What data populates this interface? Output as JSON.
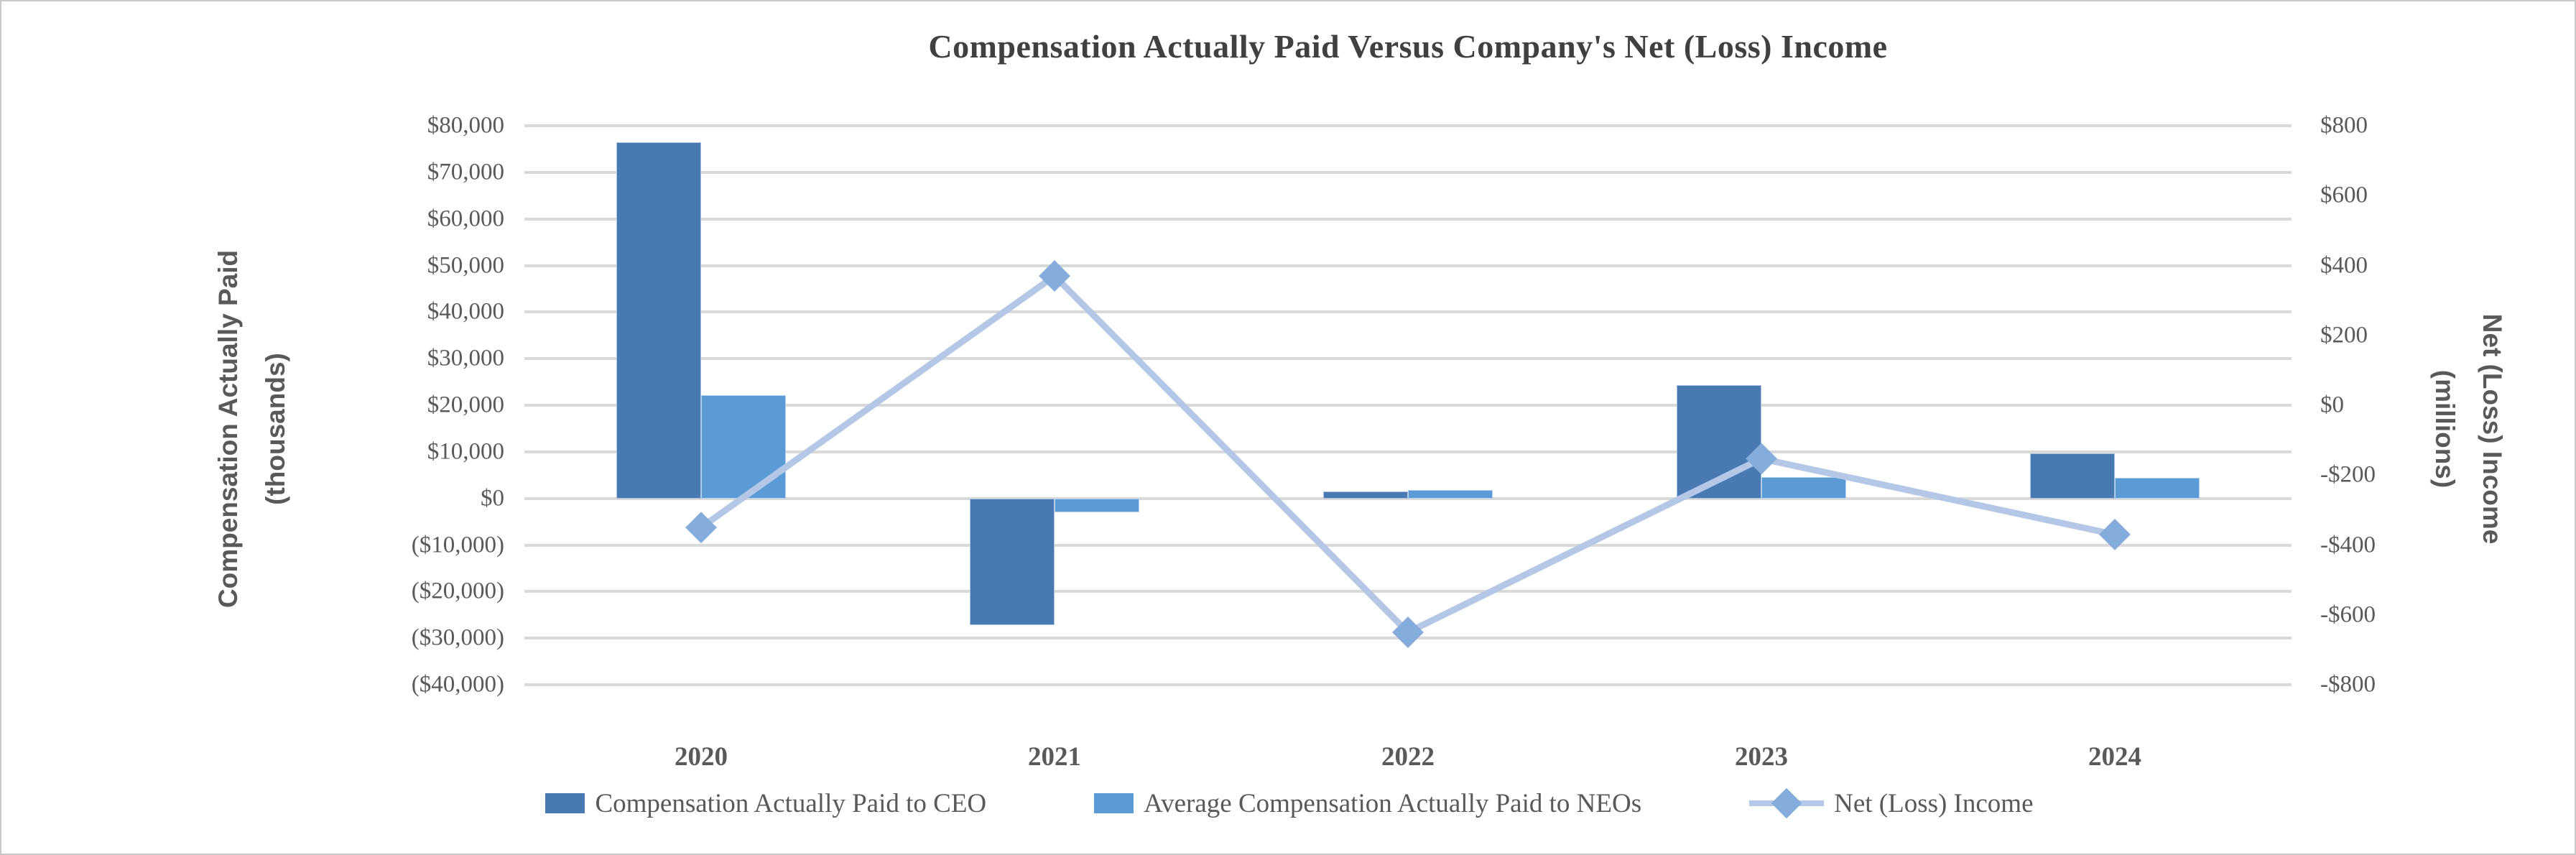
{
  "chart_data": {
    "type": "bar+line combo",
    "title": "Compensation Actually Paid Versus Company's Net (Loss) Income",
    "categories": [
      "2020",
      "2021",
      "2022",
      "2023",
      "2024"
    ],
    "series": [
      {
        "name": "Compensation Actually Paid to CEO",
        "type": "bar",
        "axis": "left",
        "color": "#4979B2",
        "values": [
          76500,
          -27200,
          1500,
          24300,
          9700
        ]
      },
      {
        "name": "Average Compensation Actually Paid to NEOs",
        "type": "bar",
        "axis": "left",
        "color": "#5B9BD5",
        "values": [
          22100,
          -3000,
          1800,
          4500,
          4400
        ]
      },
      {
        "name": "Net (Loss) Income",
        "type": "line",
        "axis": "right",
        "color": "#B4C7E7",
        "marker": "diamond",
        "marker_color": "#85ADDB",
        "values": [
          -350,
          370,
          -650,
          -153,
          -370
        ]
      }
    ],
    "left_axis": {
      "title_lines": [
        "Compensation Actually Paid",
        "(thousands)"
      ],
      "min": -40000,
      "max": 80000,
      "step": 10000,
      "tick_labels": [
        "$80,000",
        "$70,000",
        "$60,000",
        "$50,000",
        "$40,000",
        "$30,000",
        "$20,000",
        "$10,000",
        "$0",
        "($10,000)",
        "($20,000)",
        "($30,000)",
        "($40,000)"
      ]
    },
    "right_axis": {
      "title_lines": [
        "Net (Loss) Income",
        "(millions)"
      ],
      "min": -800,
      "max": 800,
      "step": 200,
      "tick_labels": [
        "$800",
        "$600",
        "$400",
        "$200",
        "$0",
        "-$200",
        "-$400",
        "-$600",
        "-$800"
      ]
    },
    "grid": true,
    "legend_position": "bottom"
  },
  "colors": {
    "background": "#FFFFFF",
    "frame_border": "#C9C9C9",
    "gridline": "#D9D9D9",
    "axis_text": "#595959",
    "title_text": "#404040"
  }
}
